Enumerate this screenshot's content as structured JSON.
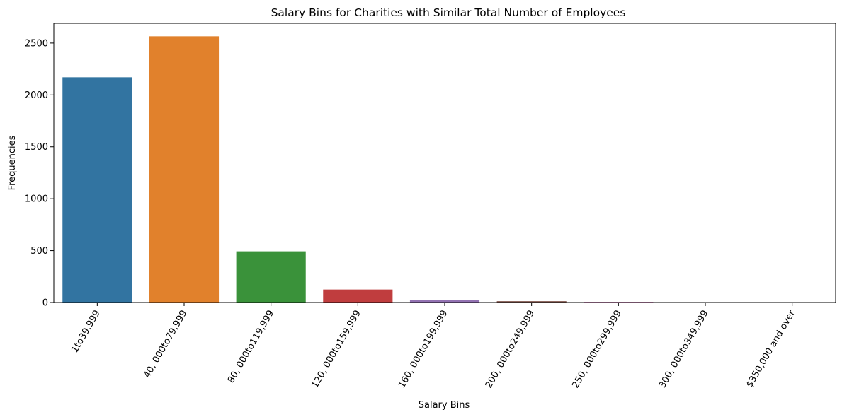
{
  "chart_data": {
    "type": "bar",
    "title": "Salary Bins for Charities with Similar Total Number of Employees",
    "xlabel": "Salary Bins",
    "ylabel": "Frequencies",
    "categories": [
      "1to39,999",
      "40, 000to79,999",
      "80, 000to119,999",
      "120, 000to159,999",
      "160, 000to199,999",
      "200, 000to249,999",
      "250, 000to299,999",
      "300, 000to349,999",
      "$350,000 and over"
    ],
    "values": [
      2170,
      2565,
      493,
      125,
      22,
      13,
      6,
      3,
      2
    ],
    "colors": [
      "#3274a1",
      "#e1812c",
      "#3a923a",
      "#c03d3e",
      "#9372b2",
      "#845b53",
      "#d684bd",
      "#7f7f7f",
      "#a9aa35"
    ],
    "ylim": [
      0,
      2690
    ],
    "yticks": [
      0,
      500,
      1000,
      1500,
      2000,
      2500
    ],
    "grid": false,
    "legend": "none"
  }
}
